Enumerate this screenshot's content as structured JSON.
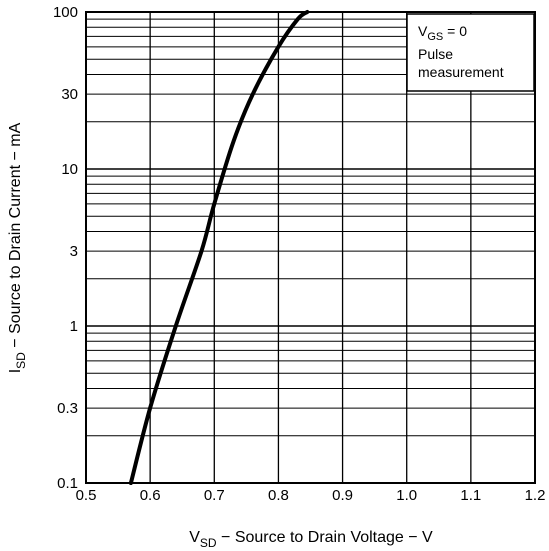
{
  "chart_data": {
    "type": "line",
    "xlabel_prefix": "V",
    "xlabel_sub": "SD",
    "xlabel_rest": " − Source to Drain Voltage − V",
    "ylabel_prefix": "I",
    "ylabel_sub": "SD",
    "ylabel_rest": " − Source to Drain Current − mA",
    "xlim": [
      0.5,
      1.2
    ],
    "ylim": [
      0.1,
      100
    ],
    "yscale": "log",
    "grid": true,
    "xticks": [
      0.5,
      0.6,
      0.7,
      0.8,
      0.9,
      1.0,
      1.1,
      1.2
    ],
    "xtick_labels": [
      "0.5",
      "0.6",
      "0.7",
      "0.8",
      "0.9",
      "1.0",
      "1.1",
      "1.2"
    ],
    "yticks": [
      0.1,
      0.3,
      1,
      3,
      10,
      30,
      100
    ],
    "ytick_labels": [
      "0.1",
      "0.3",
      "1",
      "3",
      "10",
      "30",
      "100"
    ],
    "annotation": {
      "line1_prefix": "V",
      "line1_sub": "GS",
      "line1_rest": " = 0",
      "line2": "Pulse",
      "line3": "measurement",
      "placement": "top-right"
    },
    "series": [
      {
        "x": [
          0.57,
          0.6,
          0.64,
          0.68,
          0.7,
          0.73,
          0.76,
          0.8,
          0.83,
          0.845
        ],
        "y": [
          0.1,
          0.3,
          1.0,
          3.0,
          6.0,
          15.0,
          30.0,
          60.0,
          90.0,
          100.0
        ]
      }
    ]
  }
}
